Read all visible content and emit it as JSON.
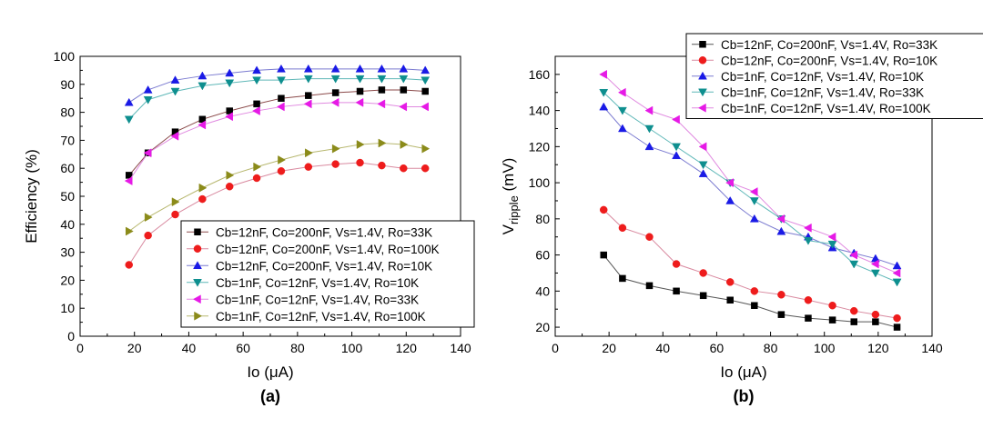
{
  "chart_data": [
    {
      "type": "line",
      "panel_label": "(a)",
      "xlabel": "Io (μA)",
      "ylabel": "Efficiency  (%)",
      "xlim": [
        0,
        140
      ],
      "ylim": [
        0,
        100
      ],
      "xticks": [
        0,
        20,
        40,
        60,
        80,
        100,
        120,
        140
      ],
      "yticks": [
        0,
        10,
        20,
        30,
        40,
        50,
        60,
        70,
        80,
        90,
        100
      ],
      "grid": false,
      "legend_position": "bottom-right",
      "x": [
        18,
        25,
        35,
        45,
        55,
        65,
        74,
        84,
        94,
        103,
        111,
        119,
        127
      ],
      "series": [
        {
          "name": "Cb=12nF, Co=200nF, Vs=1.4V, Ro=33K",
          "marker": "square",
          "color": "#000000",
          "line_color": "#8b4a4a",
          "values": [
            57.5,
            65.5,
            73,
            77.5,
            80.5,
            83,
            85,
            86,
            87,
            87.5,
            88,
            88,
            87.5
          ]
        },
        {
          "name": "Cb=12nF, Co=200nF, Vs=1.4V, Ro=100K",
          "marker": "circle",
          "color": "#ee1c1c",
          "line_color": "#d98aa0",
          "values": [
            25.5,
            36,
            43.5,
            49,
            53.5,
            56.5,
            59,
            60.5,
            61.5,
            62,
            61,
            60,
            60
          ]
        },
        {
          "name": "Cb=12nF, Co=200nF, Vs=1.4V, Ro=10K",
          "marker": "triangle-up",
          "color": "#1a1ae6",
          "line_color": "#7a7ad0",
          "values": [
            83.5,
            88,
            91.5,
            93,
            94,
            95,
            95.5,
            95.5,
            95.5,
            95.5,
            95.5,
            95.5,
            95
          ]
        },
        {
          "name": "Cb=1nF, Co=12nF, Vs=1.4V, Ro=10K",
          "marker": "triangle-down",
          "color": "#0e8f8f",
          "line_color": "#5fb8b8",
          "values": [
            77.5,
            84.5,
            87.5,
            89.5,
            90.5,
            91.5,
            91.5,
            92,
            92,
            92,
            92,
            92,
            91.5
          ]
        },
        {
          "name": "Cb=1nF, Co=12nF, Vs=1.4V, Ro=33K",
          "marker": "triangle-left",
          "color": "#e61ae6",
          "line_color": "#e08ae0",
          "values": [
            55.5,
            65.5,
            71.5,
            75.5,
            78.5,
            80.5,
            82,
            83,
            83.5,
            83.5,
            83,
            82,
            82
          ]
        },
        {
          "name": "Cb=1nF, Co=12nF, Vs=1.4V, Ro=100K",
          "marker": "triangle-right",
          "color": "#8b8b1a",
          "line_color": "#b8b870",
          "values": [
            37.5,
            42.5,
            48,
            53,
            57.5,
            60.5,
            63,
            65.5,
            67,
            68.5,
            69,
            68.5,
            67
          ]
        }
      ]
    },
    {
      "type": "line",
      "panel_label": "(b)",
      "xlabel": "Io (μA)",
      "ylabel_main": "V",
      "ylabel_sub": "ripple",
      "ylabel_unit": " (mV)",
      "xlim": [
        0,
        140
      ],
      "ylim": [
        15,
        170
      ],
      "xticks": [
        0,
        20,
        40,
        60,
        80,
        100,
        120,
        140
      ],
      "yticks": [
        20,
        40,
        60,
        80,
        100,
        120,
        140,
        160
      ],
      "grid": false,
      "legend_position": "top-right",
      "x": [
        18,
        25,
        35,
        45,
        55,
        65,
        74,
        84,
        94,
        103,
        111,
        119,
        127
      ],
      "series": [
        {
          "name": "Cb=12nF, Co=200nF, Vs=1.4V, Ro=33K",
          "marker": "square",
          "color": "#000000",
          "line_color": "#555555",
          "values": [
            60,
            47,
            43,
            40,
            37.5,
            35,
            32,
            27,
            25,
            24,
            23,
            23,
            20
          ]
        },
        {
          "name": "Cb=12nF, Co=200nF, Vs=1.4V, Ro=10K",
          "marker": "circle",
          "color": "#ee1c1c",
          "line_color": "#d98aa0",
          "values": [
            85,
            75,
            70,
            55,
            50,
            45,
            40,
            38,
            35,
            32,
            29,
            27,
            25
          ]
        },
        {
          "name": "Cb=1nF, Co=12nF, Vs=1.4V, Ro=10K",
          "marker": "triangle-up",
          "color": "#1a1ae6",
          "line_color": "#7a7ad0",
          "values": [
            142,
            130,
            120,
            115,
            105,
            90,
            80,
            73,
            70,
            64,
            61,
            58,
            54
          ]
        },
        {
          "name": "Cb=1nF, Co=12nF, Vs=1.4V, Ro=33K",
          "marker": "triangle-down",
          "color": "#0e8f8f",
          "line_color": "#5fb8b8",
          "values": [
            150,
            140,
            130,
            120,
            110,
            100,
            90,
            80,
            68,
            66,
            55,
            50,
            45
          ]
        },
        {
          "name": "Cb=1nF, Co=12nF, Vs=1.4V, Ro=100K",
          "marker": "triangle-left",
          "color": "#e61ae6",
          "line_color": "#e08ae0",
          "values": [
            160,
            150,
            140,
            135,
            120,
            100,
            95,
            80,
            75,
            70,
            60,
            55,
            50
          ]
        }
      ]
    }
  ]
}
